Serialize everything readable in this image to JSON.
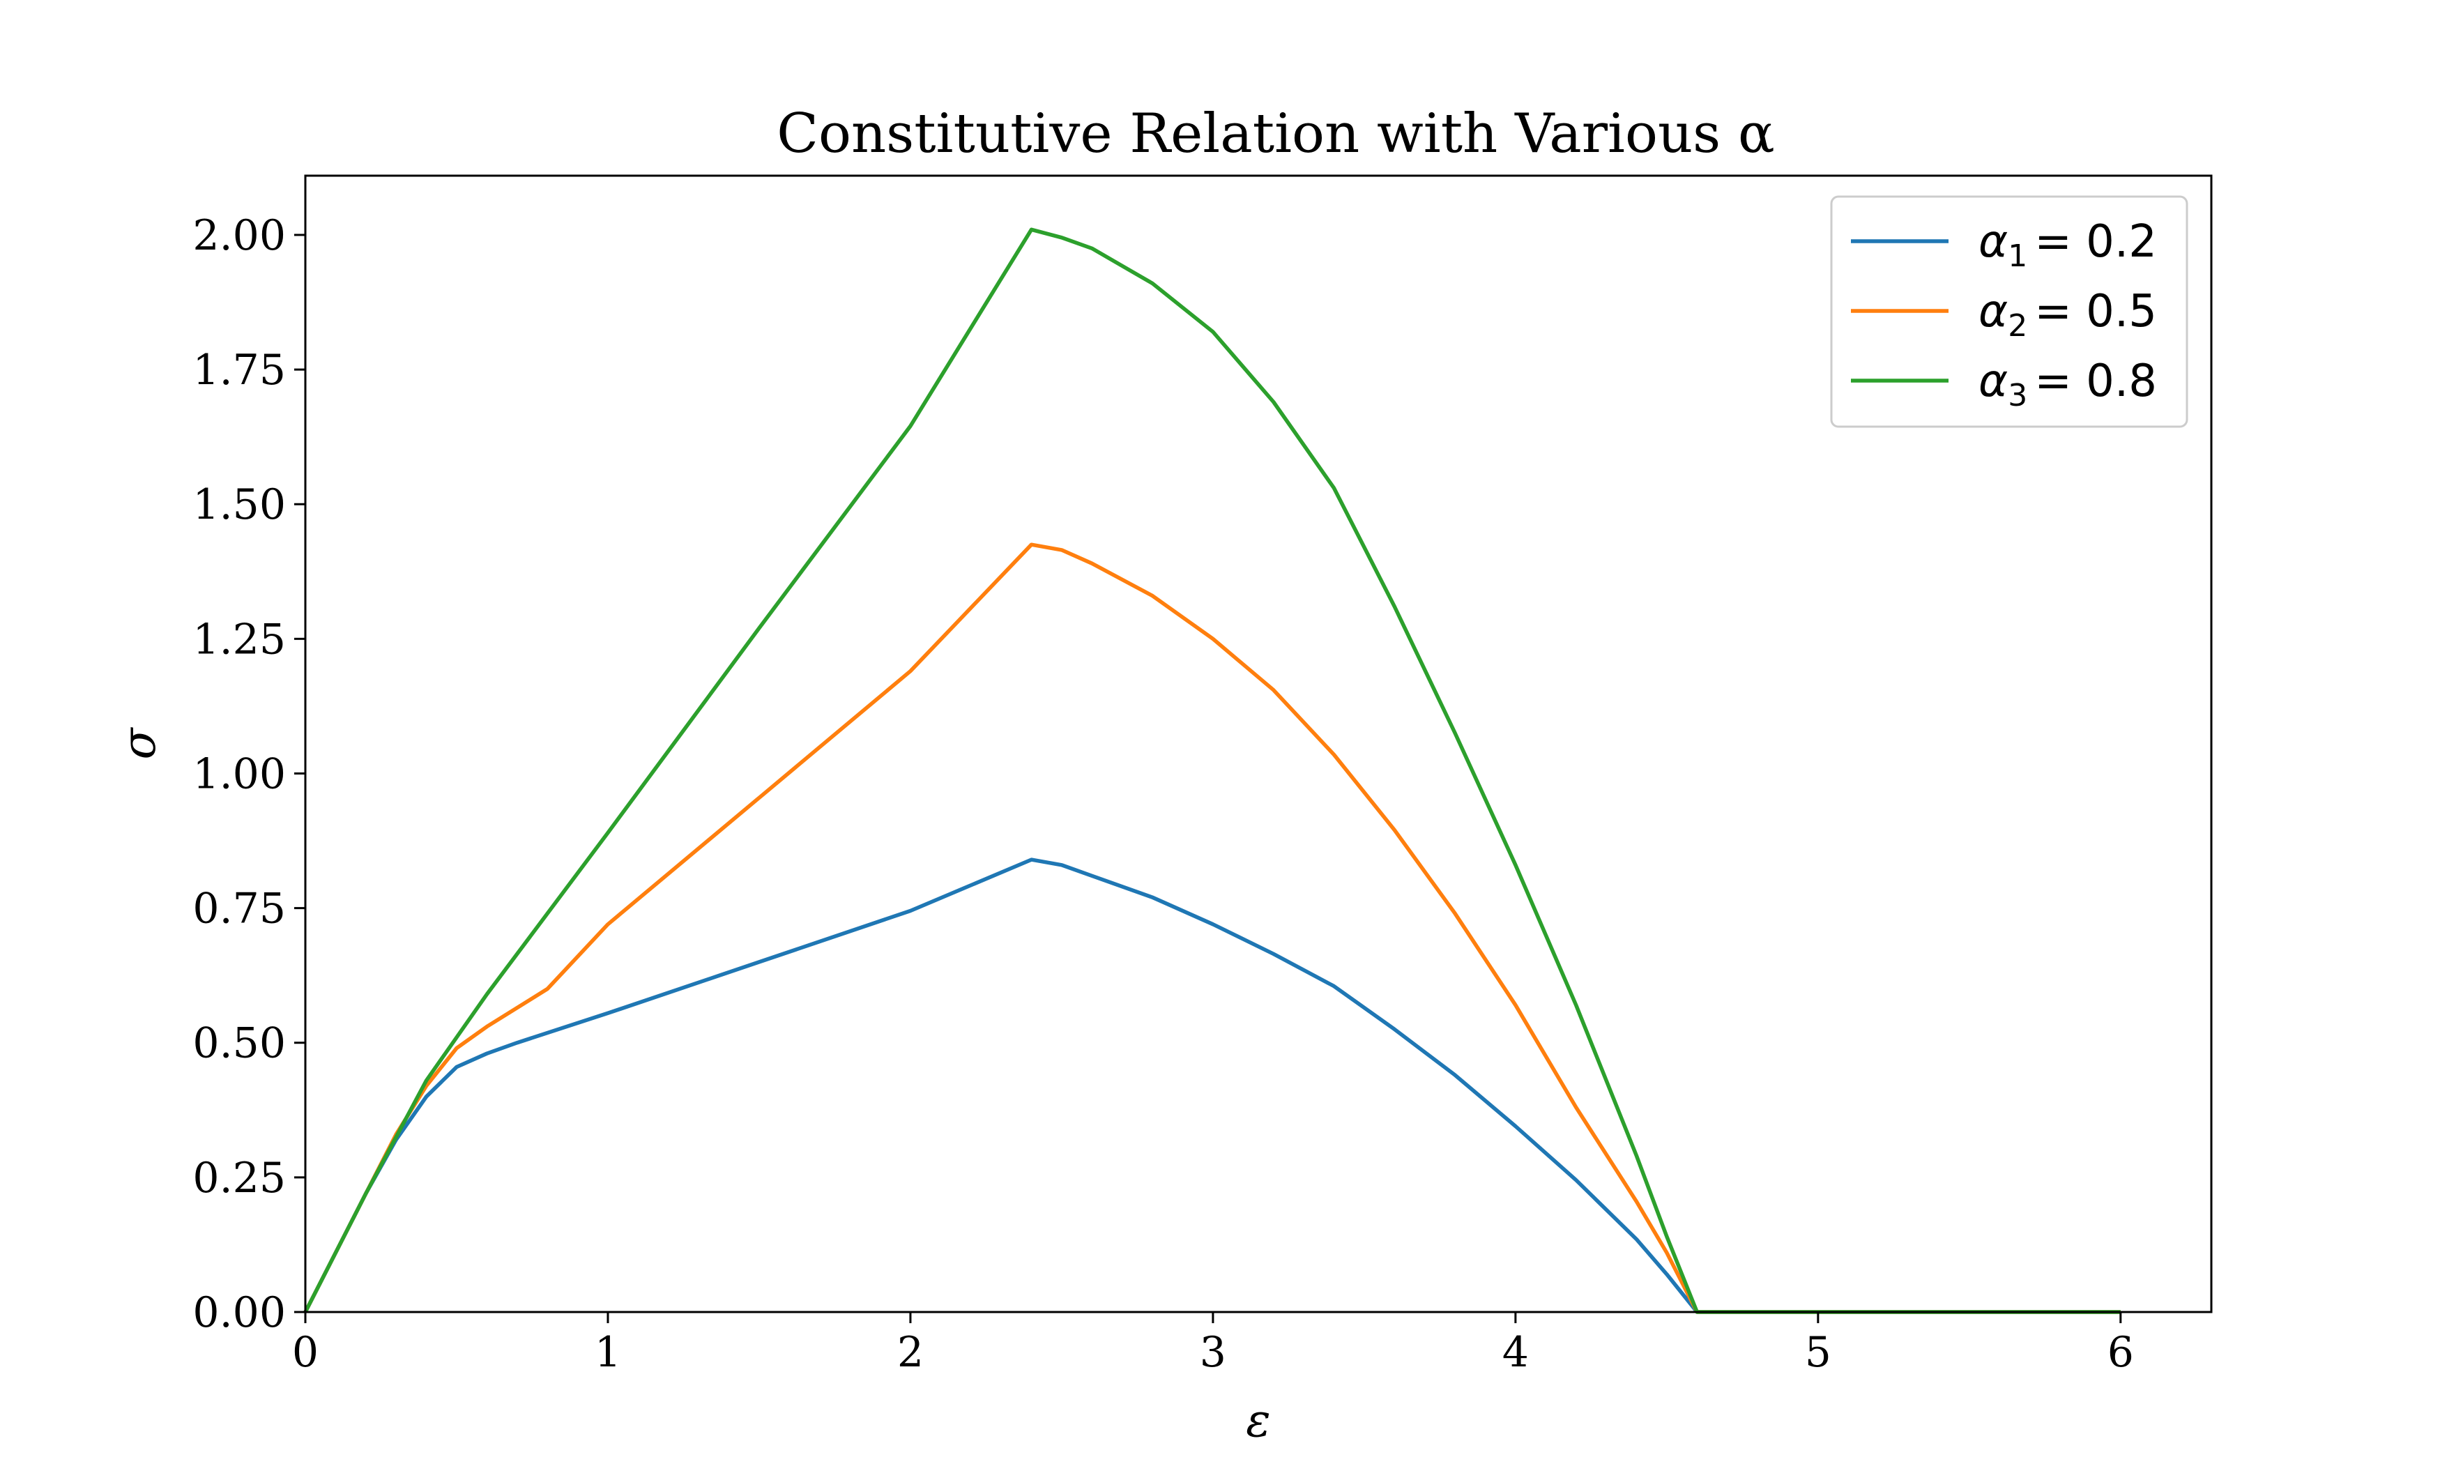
{
  "chart_data": {
    "type": "line",
    "title": "Constitutive Relation with Various α",
    "xlabel": "ε",
    "ylabel": "σ",
    "xlim": [
      0,
      6.3
    ],
    "ylim": [
      0,
      2.11
    ],
    "xticks": [
      0,
      1,
      2,
      3,
      4,
      5,
      6
    ],
    "xtick_labels": [
      "0",
      "1",
      "2",
      "3",
      "4",
      "5",
      "6"
    ],
    "yticks": [
      0,
      0.25,
      0.5,
      0.75,
      1.0,
      1.25,
      1.5,
      1.75,
      2.0
    ],
    "ytick_labels": [
      "0.00",
      "0.25",
      "0.50",
      "0.75",
      "1.00",
      "1.25",
      "1.50",
      "1.75",
      "2.00"
    ],
    "grid": false,
    "legend_position": "top-right",
    "series": [
      {
        "name": "α1 = 0.2",
        "legend_symbol": "α",
        "legend_sub": "1",
        "legend_value": "= 0.2",
        "color": "#1f77b4",
        "points": [
          [
            0,
            0
          ],
          [
            0.1,
            0.11
          ],
          [
            0.2,
            0.22
          ],
          [
            0.3,
            0.32
          ],
          [
            0.4,
            0.4
          ],
          [
            0.5,
            0.455
          ],
          [
            0.6,
            0.48
          ],
          [
            0.7,
            0.5
          ],
          [
            1.0,
            0.555
          ],
          [
            1.5,
            0.65
          ],
          [
            2.0,
            0.745
          ],
          [
            2.4,
            0.84
          ],
          [
            2.5,
            0.83
          ],
          [
            2.6,
            0.81
          ],
          [
            2.8,
            0.77
          ],
          [
            3.0,
            0.72
          ],
          [
            3.2,
            0.665
          ],
          [
            3.4,
            0.605
          ],
          [
            3.6,
            0.525
          ],
          [
            3.8,
            0.44
          ],
          [
            4.0,
            0.345
          ],
          [
            4.2,
            0.245
          ],
          [
            4.4,
            0.135
          ],
          [
            4.5,
            0.07
          ],
          [
            4.6,
            0.0
          ],
          [
            5.0,
            0.0
          ],
          [
            6.0,
            0.0
          ]
        ]
      },
      {
        "name": "α2 = 0.5",
        "legend_symbol": "α",
        "legend_sub": "2",
        "legend_value": "= 0.5",
        "color": "#ff7f0e",
        "points": [
          [
            0,
            0
          ],
          [
            0.1,
            0.11
          ],
          [
            0.2,
            0.22
          ],
          [
            0.3,
            0.33
          ],
          [
            0.4,
            0.42
          ],
          [
            0.5,
            0.49
          ],
          [
            0.6,
            0.53
          ],
          [
            0.8,
            0.6
          ],
          [
            1.0,
            0.72
          ],
          [
            1.5,
            0.955
          ],
          [
            2.0,
            1.19
          ],
          [
            2.4,
            1.425
          ],
          [
            2.5,
            1.415
          ],
          [
            2.6,
            1.39
          ],
          [
            2.8,
            1.33
          ],
          [
            3.0,
            1.25
          ],
          [
            3.2,
            1.155
          ],
          [
            3.4,
            1.035
          ],
          [
            3.6,
            0.895
          ],
          [
            3.8,
            0.74
          ],
          [
            4.0,
            0.57
          ],
          [
            4.2,
            0.38
          ],
          [
            4.4,
            0.205
          ],
          [
            4.5,
            0.11
          ],
          [
            4.6,
            0.0
          ],
          [
            5.0,
            0.0
          ],
          [
            6.0,
            0.0
          ]
        ]
      },
      {
        "name": "α3 = 0.8",
        "legend_symbol": "α",
        "legend_sub": "3",
        "legend_value": "= 0.8",
        "color": "#2ca02c",
        "points": [
          [
            0,
            0
          ],
          [
            0.2,
            0.22
          ],
          [
            0.4,
            0.43
          ],
          [
            0.6,
            0.59
          ],
          [
            1.0,
            0.89
          ],
          [
            1.5,
            1.27
          ],
          [
            2.0,
            1.645
          ],
          [
            2.4,
            2.01
          ],
          [
            2.5,
            1.995
          ],
          [
            2.6,
            1.975
          ],
          [
            2.8,
            1.91
          ],
          [
            3.0,
            1.82
          ],
          [
            3.2,
            1.69
          ],
          [
            3.4,
            1.53
          ],
          [
            3.6,
            1.31
          ],
          [
            3.8,
            1.075
          ],
          [
            4.0,
            0.83
          ],
          [
            4.2,
            0.57
          ],
          [
            4.4,
            0.29
          ],
          [
            4.5,
            0.14
          ],
          [
            4.6,
            0.0
          ],
          [
            5.0,
            0.0
          ],
          [
            6.0,
            0.0
          ]
        ]
      }
    ]
  }
}
